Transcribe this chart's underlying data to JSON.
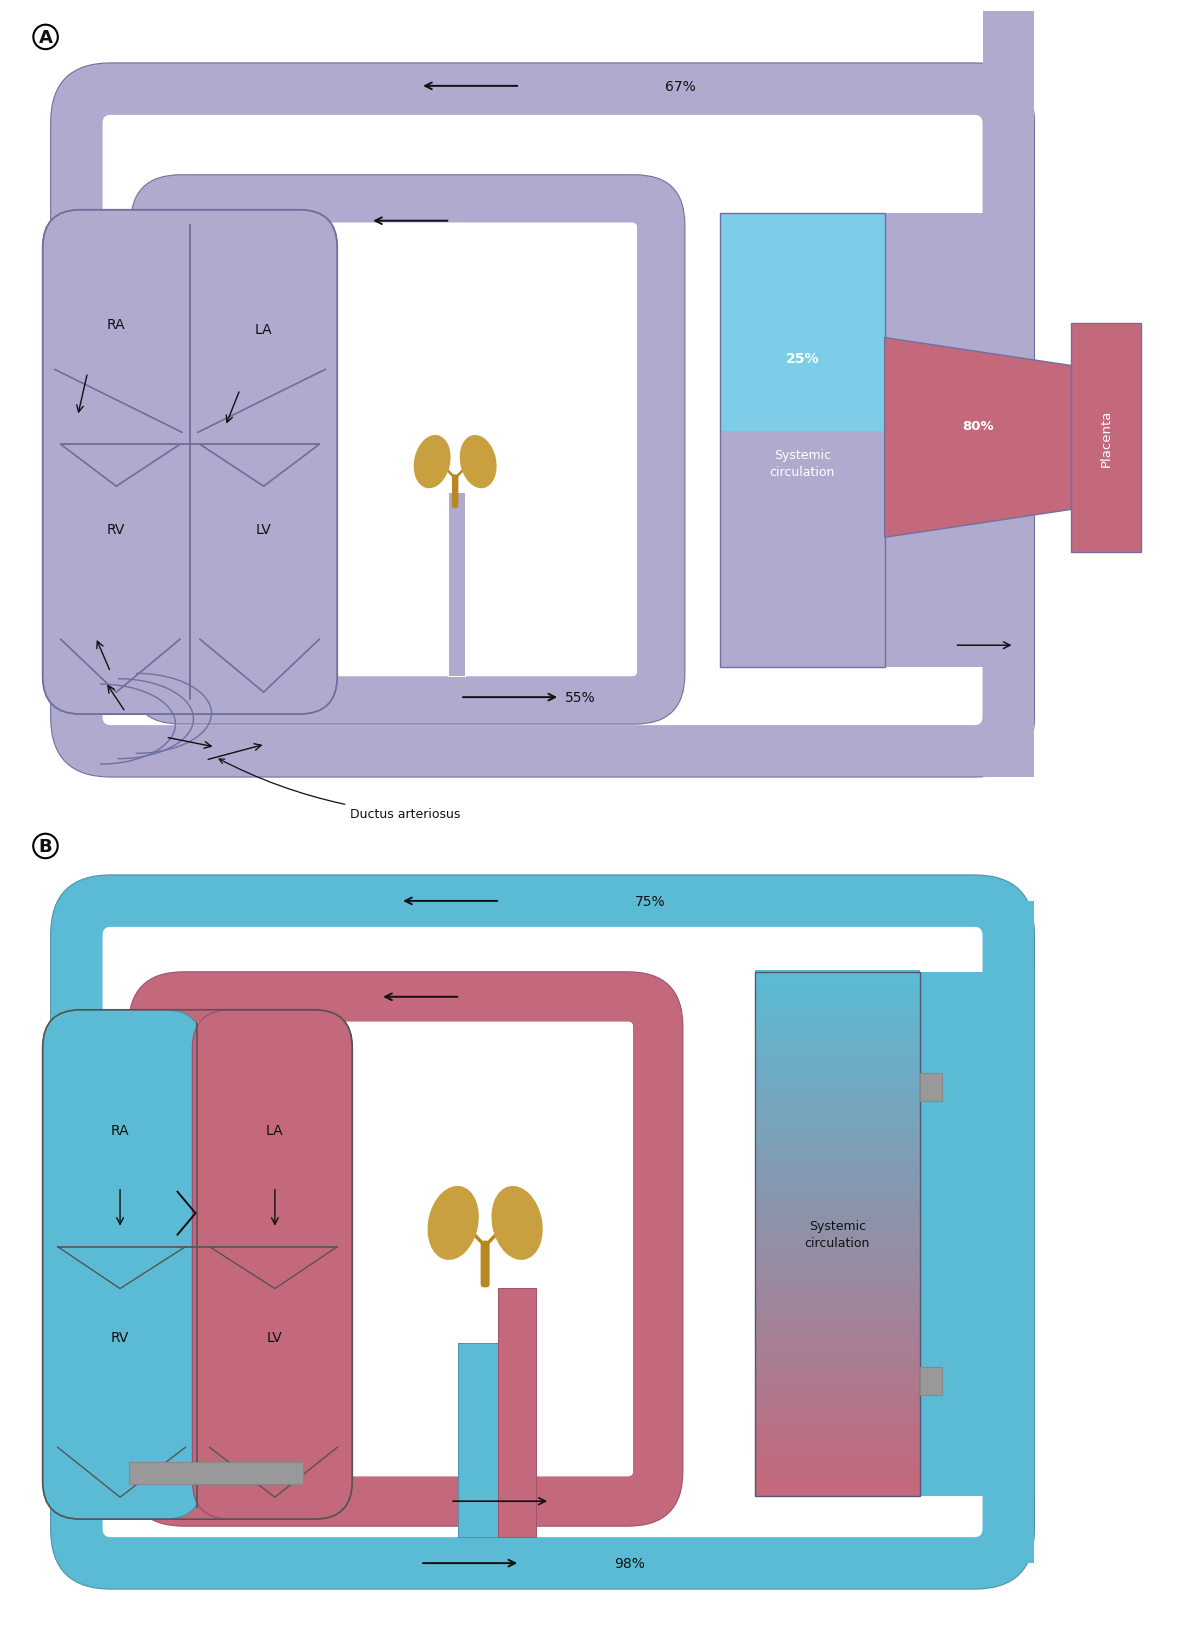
{
  "fig_width": 11.82,
  "fig_height": 16.33,
  "dpi": 100,
  "bg_color": "#ffffff",
  "fetal_color": "#b0aacf",
  "fetal_light": "#c8c2e0",
  "adult_blue": "#5bbbd4",
  "adult_pink": "#c4687c",
  "lung_color": "#c8a040",
  "lung_stem_color": "#b88820",
  "gray_color": "#999999",
  "placenta_color": "#c4687c",
  "systemic_top": "#7ecde8",
  "systemic_bot": "#c4687c",
  "text_white": "#ffffff",
  "text_black": "#111111",
  "outline_color": "#7070a0",
  "outline_color_b": "#5090a8",
  "outline_color_bp": "#a05070",
  "pct_67": "67%",
  "pct_55": "55%",
  "pct_25": "25%",
  "pct_80": "80%",
  "pct_75": "75%",
  "pct_98": "98%",
  "label_RA": "RA",
  "label_LA": "LA",
  "label_RV": "RV",
  "label_LV": "LV",
  "label_systemic": "Systemic\ncirculation",
  "label_placenta": "Placenta",
  "label_ductus": "Ductus arteriosus",
  "panel_A": "A",
  "panel_B": "B"
}
